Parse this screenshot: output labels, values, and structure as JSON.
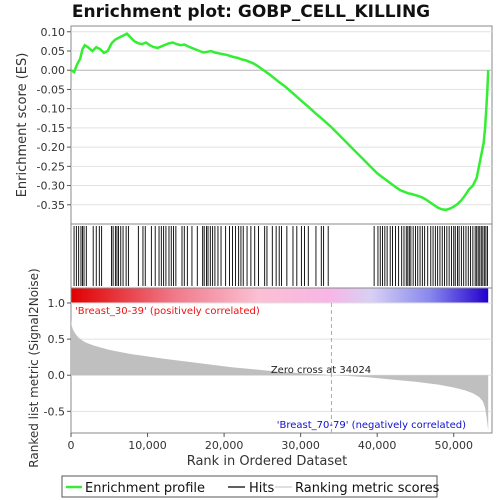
{
  "chart_data": {
    "type": "line",
    "title": "Enrichment plot: GOBP_CELL_KILLING",
    "colors": {
      "es_line": "#33ee33",
      "hits": "#000000",
      "metric_fill": "#bfbfbf",
      "positive_label": "#ee1111",
      "negative_label": "#1111cc",
      "zero_cross_line": "#aaaaaa",
      "grid": "#e2e2e2"
    },
    "es_panel": {
      "ylabel": "Enrichment score (ES)",
      "ylim": [
        -0.4,
        0.115
      ],
      "yticks": [
        0.1,
        0.05,
        0.0,
        -0.05,
        -0.1,
        -0.15,
        -0.2,
        -0.25,
        -0.3,
        -0.35
      ],
      "ytick_labels": [
        "0.10",
        "0.05",
        "0.00",
        "-0.05",
        "-0.10",
        "-0.15",
        "-0.20",
        "-0.25",
        "-0.30",
        "-0.35"
      ],
      "series": [
        {
          "name": "Enrichment profile",
          "x": [
            0,
            400,
            800,
            1200,
            1500,
            1800,
            2200,
            2800,
            3300,
            3800,
            4300,
            4800,
            5300,
            5800,
            6300,
            6800,
            7300,
            7800,
            8300,
            8800,
            9300,
            9800,
            10300,
            10800,
            11300,
            11800,
            12300,
            12800,
            13300,
            13800,
            14300,
            14800,
            15300,
            15800,
            16300,
            16800,
            17300,
            17800,
            18300,
            18800,
            19300,
            19800,
            20300,
            20800,
            21300,
            21800,
            22300,
            22800,
            23300,
            23800,
            24300,
            25000,
            26000,
            27000,
            28000,
            29000,
            30000,
            31000,
            32000,
            33000,
            34000,
            35000,
            36000,
            37000,
            38000,
            39000,
            40000,
            41000,
            42000,
            43000,
            44000,
            44500,
            45000,
            45500,
            46000,
            46500,
            47000,
            47500,
            48000,
            48500,
            49000,
            49500,
            50000,
            50500,
            51000,
            51500,
            52000,
            52500,
            53000,
            53300,
            53600,
            53900,
            54100,
            54250,
            54400,
            54500
          ],
          "y": [
            0.0,
            -0.005,
            0.015,
            0.03,
            0.055,
            0.065,
            0.06,
            0.05,
            0.06,
            0.055,
            0.045,
            0.05,
            0.07,
            0.08,
            0.085,
            0.09,
            0.095,
            0.085,
            0.075,
            0.07,
            0.068,
            0.072,
            0.065,
            0.06,
            0.058,
            0.062,
            0.066,
            0.07,
            0.072,
            0.068,
            0.065,
            0.067,
            0.062,
            0.058,
            0.054,
            0.05,
            0.046,
            0.048,
            0.05,
            0.046,
            0.044,
            0.042,
            0.04,
            0.037,
            0.034,
            0.032,
            0.028,
            0.026,
            0.022,
            0.018,
            0.012,
            0.002,
            -0.012,
            -0.028,
            -0.043,
            -0.06,
            -0.078,
            -0.095,
            -0.113,
            -0.13,
            -0.148,
            -0.168,
            -0.188,
            -0.208,
            -0.228,
            -0.248,
            -0.268,
            -0.283,
            -0.298,
            -0.312,
            -0.32,
            -0.322,
            -0.325,
            -0.328,
            -0.332,
            -0.338,
            -0.345,
            -0.352,
            -0.358,
            -0.362,
            -0.363,
            -0.36,
            -0.355,
            -0.348,
            -0.338,
            -0.325,
            -0.31,
            -0.3,
            -0.28,
            -0.25,
            -0.22,
            -0.19,
            -0.15,
            -0.1,
            -0.05,
            0.0
          ]
        }
      ]
    },
    "hits": {
      "name": "Hits",
      "x": [
        400,
        700,
        1000,
        1300,
        1500,
        1700,
        2000,
        2900,
        3300,
        3700,
        4000,
        5300,
        5500,
        5800,
        6000,
        6200,
        6500,
        6800,
        7200,
        7500,
        8800,
        9400,
        9700,
        10500,
        11000,
        11500,
        11800,
        12100,
        12400,
        12800,
        13100,
        13400,
        13700,
        14500,
        14800,
        15200,
        15800,
        16500,
        17200,
        17400,
        17700,
        17900,
        18200,
        18500,
        18800,
        19200,
        19600,
        20200,
        20700,
        21100,
        21500,
        21900,
        22200,
        22500,
        23000,
        23500,
        24000,
        24500,
        25300,
        25600,
        26300,
        26800,
        27200,
        27500,
        28200,
        29000,
        29500,
        30100,
        30500,
        31000,
        32000,
        32700,
        33000,
        33600,
        39600,
        40100,
        40400,
        40700,
        41000,
        41300,
        41700,
        42000,
        42400,
        42800,
        43200,
        43500,
        43800,
        44000,
        44200,
        44400,
        44700,
        45000,
        45300,
        45600,
        45900,
        46200,
        46600,
        47000,
        47300,
        47600,
        47900,
        48200,
        48500,
        48800,
        49100,
        49400,
        49700,
        50000,
        50200,
        50500,
        50700,
        51000,
        51300,
        51600,
        51900,
        52200,
        52500,
        52800,
        53000,
        53200,
        53400,
        53600,
        53800,
        54000,
        54200,
        54400
      ]
    },
    "metric_panel": {
      "ylabel": "Ranked list metric (Signal2Noise)",
      "ylim": [
        -0.8,
        1.0
      ],
      "yticks": [
        1.0,
        0.5,
        0.0,
        -0.5
      ],
      "ytick_labels": [
        "1.0",
        "0.5",
        "0.0",
        "-0.5"
      ],
      "series": [
        {
          "name": "Ranking metric scores",
          "x": [
            0,
            100,
            300,
            600,
            1000,
            1500,
            2000,
            3000,
            4000,
            5000,
            6000,
            8000,
            10000,
            12000,
            15000,
            18000,
            21000,
            24000,
            27000,
            30000,
            33000,
            34024,
            36000,
            39000,
            42000,
            45000,
            48000,
            50000,
            51500,
            52500,
            53300,
            53800,
            54100,
            54300,
            54450,
            54500
          ],
          "y": [
            0.78,
            0.68,
            0.62,
            0.57,
            0.52,
            0.48,
            0.45,
            0.41,
            0.38,
            0.35,
            0.33,
            0.29,
            0.26,
            0.23,
            0.19,
            0.15,
            0.11,
            0.08,
            0.05,
            0.03,
            0.01,
            0.0,
            -0.01,
            -0.03,
            -0.06,
            -0.09,
            -0.13,
            -0.17,
            -0.21,
            -0.25,
            -0.3,
            -0.36,
            -0.45,
            -0.58,
            -0.72,
            -0.76
          ]
        }
      ],
      "positive_label": "'Breast_30-39' (positively correlated)",
      "negative_label": "'Breast_70-79' (negatively correlated)",
      "zero_cross_label": "Zero cross at 34024",
      "zero_cross": 34024
    },
    "xlabel": "Rank in Ordered Dataset",
    "xlim": [
      0,
      55000
    ],
    "xticks": [
      0,
      10000,
      20000,
      30000,
      40000,
      50000
    ],
    "xtick_labels": [
      "0",
      "10,000",
      "20,000",
      "30,000",
      "40,000",
      "50,000"
    ],
    "n_genes": 54500,
    "legend": {
      "placement": "bottom",
      "entries": [
        "Enrichment profile",
        "Hits",
        "Ranking metric scores"
      ]
    }
  }
}
